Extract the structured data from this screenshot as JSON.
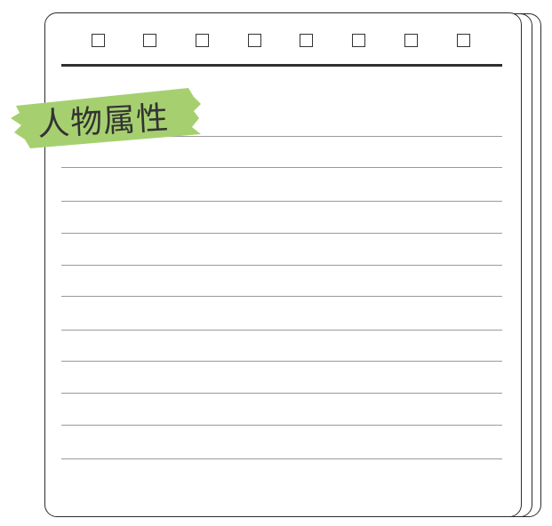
{
  "title_tag": {
    "text": "人物属性",
    "tape_color": "#a6d070"
  },
  "binding": {
    "hole_count": 8
  },
  "ruled_lines": {
    "count": 11
  }
}
